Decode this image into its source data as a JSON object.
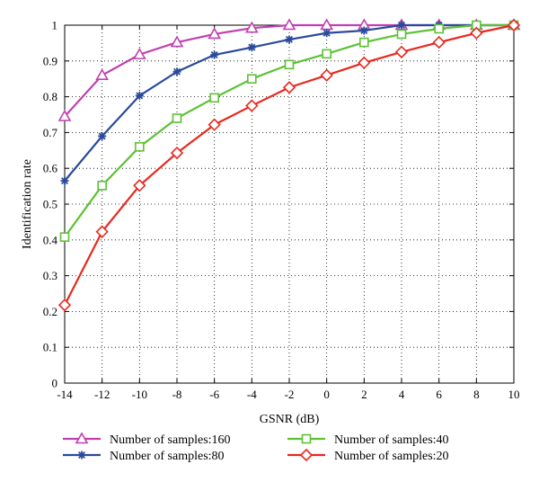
{
  "chart_data": {
    "type": "line",
    "title": "",
    "xlabel": "GSNR (dB)",
    "ylabel": "Identification rate",
    "x": [
      -14,
      -12,
      -10,
      -8,
      -6,
      -4,
      -2,
      0,
      2,
      4,
      6,
      8,
      10
    ],
    "xlim": [
      -14,
      10
    ],
    "ylim": [
      0,
      1
    ],
    "xticks": [
      "-14",
      "-12",
      "-10",
      "-8",
      "-6",
      "-4",
      "-2",
      "0",
      "2",
      "4",
      "6",
      "8",
      "10"
    ],
    "yticks": [
      "0",
      "0.1",
      "0.2",
      "0.3",
      "0.4",
      "0.5",
      "0.6",
      "0.7",
      "0.8",
      "0.9",
      "1"
    ],
    "grid": true,
    "grid_style": "dotted",
    "legend_position": "below",
    "series": [
      {
        "name": "Number of samples:160",
        "color": "#c040b0",
        "marker": "triangle",
        "values": [
          0.745,
          0.86,
          0.918,
          0.952,
          0.975,
          0.992,
          1.0,
          1.0,
          1.0,
          1.0,
          1.0,
          1.0,
          1.0
        ]
      },
      {
        "name": "Number of samples:80",
        "color": "#2a4b9b",
        "marker": "star",
        "values": [
          0.565,
          0.69,
          0.803,
          0.87,
          0.917,
          0.938,
          0.96,
          0.978,
          0.985,
          1.0,
          1.0,
          1.0,
          1.0
        ]
      },
      {
        "name": "Number of samples:40",
        "color": "#5cc235",
        "marker": "square",
        "values": [
          0.408,
          0.552,
          0.66,
          0.74,
          0.797,
          0.85,
          0.89,
          0.92,
          0.952,
          0.975,
          0.99,
          1.0,
          1.0
        ]
      },
      {
        "name": "Number of samples:20",
        "color": "#e8281e",
        "marker": "diamond",
        "values": [
          0.218,
          0.423,
          0.552,
          0.643,
          0.722,
          0.775,
          0.826,
          0.86,
          0.895,
          0.925,
          0.952,
          0.978,
          1.0
        ]
      }
    ]
  }
}
